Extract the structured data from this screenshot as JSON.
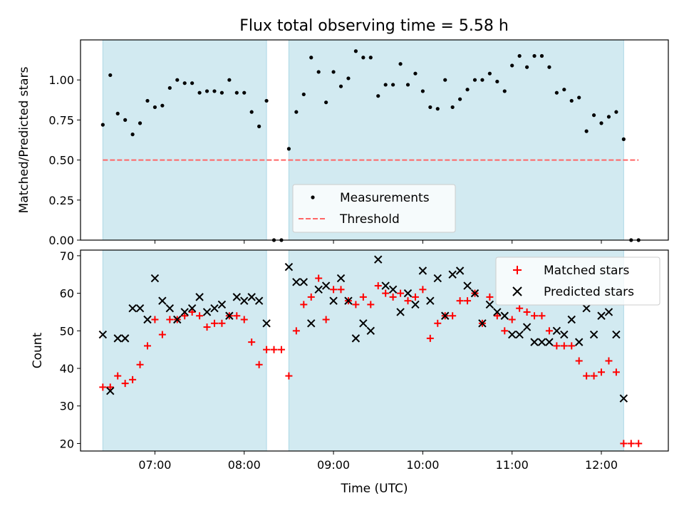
{
  "figure": {
    "title": "Flux total observing time = 5.58 h",
    "xlabel": "Time (UTC)",
    "colors": {
      "night_band": "#add8e6",
      "measurements": "#000000",
      "threshold": "#ff6666",
      "matched": "#ff0000",
      "predicted": "#000000",
      "axes": "#000000"
    }
  },
  "chart_data": [
    {
      "type": "scatter",
      "panel": "top",
      "ylabel": "Matched/Predicted stars",
      "xlim": [
        "06:10",
        "12:45"
      ],
      "ylim": [
        0,
        1.25
      ],
      "yticks": [
        0.0,
        0.25,
        0.5,
        0.75,
        1.0
      ],
      "ytick_labels": [
        "0.00",
        "0.25",
        "0.50",
        "0.75",
        "1.00"
      ],
      "xticks": [
        "07:00",
        "08:00",
        "09:00",
        "10:00",
        "11:00",
        "12:00"
      ],
      "show_xtick_labels": false,
      "shaded_intervals": [
        [
          "06:25",
          "08:15"
        ],
        [
          "08:30",
          "12:15"
        ]
      ],
      "legend": {
        "position": "lower center",
        "entries": [
          "Measurements",
          "Threshold"
        ]
      },
      "threshold": {
        "name": "Threshold",
        "y": 0.5,
        "x_range": [
          "06:25",
          "12:25"
        ],
        "style": "dashed"
      },
      "series": [
        {
          "name": "Measurements",
          "marker": "dot",
          "points": [
            [
              "06:25",
              0.72
            ],
            [
              "06:30",
              1.03
            ],
            [
              "06:35",
              0.79
            ],
            [
              "06:40",
              0.75
            ],
            [
              "06:45",
              0.66
            ],
            [
              "06:50",
              0.73
            ],
            [
              "06:55",
              0.87
            ],
            [
              "07:00",
              0.83
            ],
            [
              "07:05",
              0.84
            ],
            [
              "07:10",
              0.95
            ],
            [
              "07:15",
              1.0
            ],
            [
              "07:20",
              0.98
            ],
            [
              "07:25",
              0.98
            ],
            [
              "07:30",
              0.92
            ],
            [
              "07:35",
              0.93
            ],
            [
              "07:40",
              0.93
            ],
            [
              "07:45",
              0.92
            ],
            [
              "07:50",
              1.0
            ],
            [
              "07:55",
              0.92
            ],
            [
              "08:00",
              0.92
            ],
            [
              "08:05",
              0.8
            ],
            [
              "08:10",
              0.71
            ],
            [
              "08:15",
              0.87
            ],
            [
              "08:20",
              0.0
            ],
            [
              "08:25",
              0.0
            ],
            [
              "08:30",
              0.57
            ],
            [
              "08:35",
              0.8
            ],
            [
              "08:40",
              0.91
            ],
            [
              "08:45",
              1.14
            ],
            [
              "08:50",
              1.05
            ],
            [
              "08:55",
              0.86
            ],
            [
              "09:00",
              1.05
            ],
            [
              "09:05",
              0.96
            ],
            [
              "09:10",
              1.01
            ],
            [
              "09:15",
              1.18
            ],
            [
              "09:20",
              1.14
            ],
            [
              "09:25",
              1.14
            ],
            [
              "09:30",
              0.9
            ],
            [
              "09:35",
              0.97
            ],
            [
              "09:40",
              0.97
            ],
            [
              "09:45",
              1.1
            ],
            [
              "09:50",
              0.97
            ],
            [
              "09:55",
              1.04
            ],
            [
              "10:00",
              0.93
            ],
            [
              "10:05",
              0.83
            ],
            [
              "10:10",
              0.82
            ],
            [
              "10:15",
              1.0
            ],
            [
              "10:20",
              0.83
            ],
            [
              "10:25",
              0.88
            ],
            [
              "10:30",
              0.94
            ],
            [
              "10:35",
              1.0
            ],
            [
              "10:40",
              1.0
            ],
            [
              "10:45",
              1.04
            ],
            [
              "10:50",
              0.99
            ],
            [
              "10:55",
              0.93
            ],
            [
              "11:00",
              1.09
            ],
            [
              "11:05",
              1.15
            ],
            [
              "11:10",
              1.08
            ],
            [
              "11:15",
              1.15
            ],
            [
              "11:20",
              1.15
            ],
            [
              "11:25",
              1.08
            ],
            [
              "11:30",
              0.92
            ],
            [
              "11:35",
              0.94
            ],
            [
              "11:40",
              0.87
            ],
            [
              "11:45",
              0.89
            ],
            [
              "11:50",
              0.68
            ],
            [
              "11:55",
              0.78
            ],
            [
              "12:00",
              0.73
            ],
            [
              "12:05",
              0.77
            ],
            [
              "12:10",
              0.8
            ],
            [
              "12:15",
              0.63
            ],
            [
              "12:20",
              0.0
            ],
            [
              "12:25",
              0.0
            ]
          ]
        }
      ]
    },
    {
      "type": "scatter",
      "panel": "bottom",
      "ylabel": "Count",
      "xlim": [
        "06:10",
        "12:45"
      ],
      "ylim": [
        18,
        71.5
      ],
      "yticks": [
        20,
        30,
        40,
        50,
        60,
        70
      ],
      "ytick_labels": [
        "20",
        "30",
        "40",
        "50",
        "60",
        "70"
      ],
      "xticks": [
        "07:00",
        "08:00",
        "09:00",
        "10:00",
        "11:00",
        "12:00"
      ],
      "xtick_labels": [
        "07:00",
        "08:00",
        "09:00",
        "10:00",
        "11:00",
        "12:00"
      ],
      "shaded_intervals": [
        [
          "06:25",
          "08:15"
        ],
        [
          "08:30",
          "12:15"
        ]
      ],
      "legend": {
        "position": "upper right",
        "entries": [
          "Matched stars",
          "Predicted stars"
        ]
      },
      "series": [
        {
          "name": "Matched stars",
          "marker": "plus",
          "points": [
            [
              "06:25",
              35
            ],
            [
              "06:30",
              35
            ],
            [
              "06:35",
              38
            ],
            [
              "06:40",
              36
            ],
            [
              "06:45",
              37
            ],
            [
              "06:50",
              41
            ],
            [
              "06:55",
              46
            ],
            [
              "07:00",
              53
            ],
            [
              "07:05",
              49
            ],
            [
              "07:10",
              53
            ],
            [
              "07:15",
              53
            ],
            [
              "07:20",
              54
            ],
            [
              "07:25",
              55
            ],
            [
              "07:30",
              54
            ],
            [
              "07:35",
              51
            ],
            [
              "07:40",
              52
            ],
            [
              "07:45",
              52
            ],
            [
              "07:50",
              54
            ],
            [
              "07:55",
              54
            ],
            [
              "08:00",
              53
            ],
            [
              "08:05",
              47
            ],
            [
              "08:10",
              41
            ],
            [
              "08:15",
              45
            ],
            [
              "08:20",
              45
            ],
            [
              "08:25",
              45
            ],
            [
              "08:30",
              38
            ],
            [
              "08:35",
              50
            ],
            [
              "08:40",
              57
            ],
            [
              "08:45",
              59
            ],
            [
              "08:50",
              64
            ],
            [
              "08:55",
              53
            ],
            [
              "09:00",
              61
            ],
            [
              "09:05",
              61
            ],
            [
              "09:10",
              58
            ],
            [
              "09:15",
              57
            ],
            [
              "09:20",
              59
            ],
            [
              "09:25",
              57
            ],
            [
              "09:30",
              62
            ],
            [
              "09:35",
              60
            ],
            [
              "09:40",
              59
            ],
            [
              "09:45",
              60
            ],
            [
              "09:50",
              58
            ],
            [
              "09:55",
              59
            ],
            [
              "10:00",
              61
            ],
            [
              "10:05",
              48
            ],
            [
              "10:10",
              52
            ],
            [
              "10:15",
              54
            ],
            [
              "10:20",
              54
            ],
            [
              "10:25",
              58
            ],
            [
              "10:30",
              58
            ],
            [
              "10:35",
              60
            ],
            [
              "10:40",
              52
            ],
            [
              "10:45",
              59
            ],
            [
              "10:50",
              54
            ],
            [
              "10:55",
              50
            ],
            [
              "11:00",
              53
            ],
            [
              "11:05",
              56
            ],
            [
              "11:10",
              55
            ],
            [
              "11:15",
              54
            ],
            [
              "11:20",
              54
            ],
            [
              "11:25",
              50
            ],
            [
              "11:30",
              46
            ],
            [
              "11:35",
              46
            ],
            [
              "11:40",
              46
            ],
            [
              "11:45",
              42
            ],
            [
              "11:50",
              38
            ],
            [
              "11:55",
              38
            ],
            [
              "12:00",
              39
            ],
            [
              "12:05",
              42
            ],
            [
              "12:10",
              39
            ],
            [
              "12:15",
              20
            ],
            [
              "12:20",
              20
            ],
            [
              "12:25",
              20
            ]
          ]
        },
        {
          "name": "Predicted stars",
          "marker": "x",
          "points": [
            [
              "06:25",
              49
            ],
            [
              "06:30",
              34
            ],
            [
              "06:35",
              48
            ],
            [
              "06:40",
              48
            ],
            [
              "06:45",
              56
            ],
            [
              "06:50",
              56
            ],
            [
              "06:55",
              53
            ],
            [
              "07:00",
              64
            ],
            [
              "07:05",
              58
            ],
            [
              "07:10",
              56
            ],
            [
              "07:15",
              53
            ],
            [
              "07:20",
              55
            ],
            [
              "07:25",
              56
            ],
            [
              "07:30",
              59
            ],
            [
              "07:35",
              55
            ],
            [
              "07:40",
              56
            ],
            [
              "07:45",
              57
            ],
            [
              "07:50",
              54
            ],
            [
              "07:55",
              59
            ],
            [
              "08:00",
              58
            ],
            [
              "08:05",
              59
            ],
            [
              "08:10",
              58
            ],
            [
              "08:15",
              52
            ],
            [
              "08:30",
              67
            ],
            [
              "08:35",
              63
            ],
            [
              "08:40",
              63
            ],
            [
              "08:45",
              52
            ],
            [
              "08:50",
              61
            ],
            [
              "08:55",
              62
            ],
            [
              "09:00",
              58
            ],
            [
              "09:05",
              64
            ],
            [
              "09:10",
              58
            ],
            [
              "09:15",
              48
            ],
            [
              "09:20",
              52
            ],
            [
              "09:25",
              50
            ],
            [
              "09:30",
              69
            ],
            [
              "09:35",
              62
            ],
            [
              "09:40",
              61
            ],
            [
              "09:45",
              55
            ],
            [
              "09:50",
              60
            ],
            [
              "09:55",
              57
            ],
            [
              "10:00",
              66
            ],
            [
              "10:05",
              58
            ],
            [
              "10:10",
              64
            ],
            [
              "10:15",
              54
            ],
            [
              "10:20",
              65
            ],
            [
              "10:25",
              66
            ],
            [
              "10:30",
              62
            ],
            [
              "10:35",
              60
            ],
            [
              "10:40",
              52
            ],
            [
              "10:45",
              57
            ],
            [
              "10:50",
              55
            ],
            [
              "10:55",
              54
            ],
            [
              "11:00",
              49
            ],
            [
              "11:05",
              49
            ],
            [
              "11:10",
              51
            ],
            [
              "11:15",
              47
            ],
            [
              "11:20",
              47
            ],
            [
              "11:25",
              47
            ],
            [
              "11:30",
              50
            ],
            [
              "11:35",
              49
            ],
            [
              "11:40",
              53
            ],
            [
              "11:45",
              47
            ],
            [
              "11:50",
              56
            ],
            [
              "11:55",
              49
            ],
            [
              "12:00",
              54
            ],
            [
              "12:05",
              55
            ],
            [
              "12:10",
              49
            ],
            [
              "12:15",
              32
            ]
          ]
        }
      ]
    }
  ]
}
